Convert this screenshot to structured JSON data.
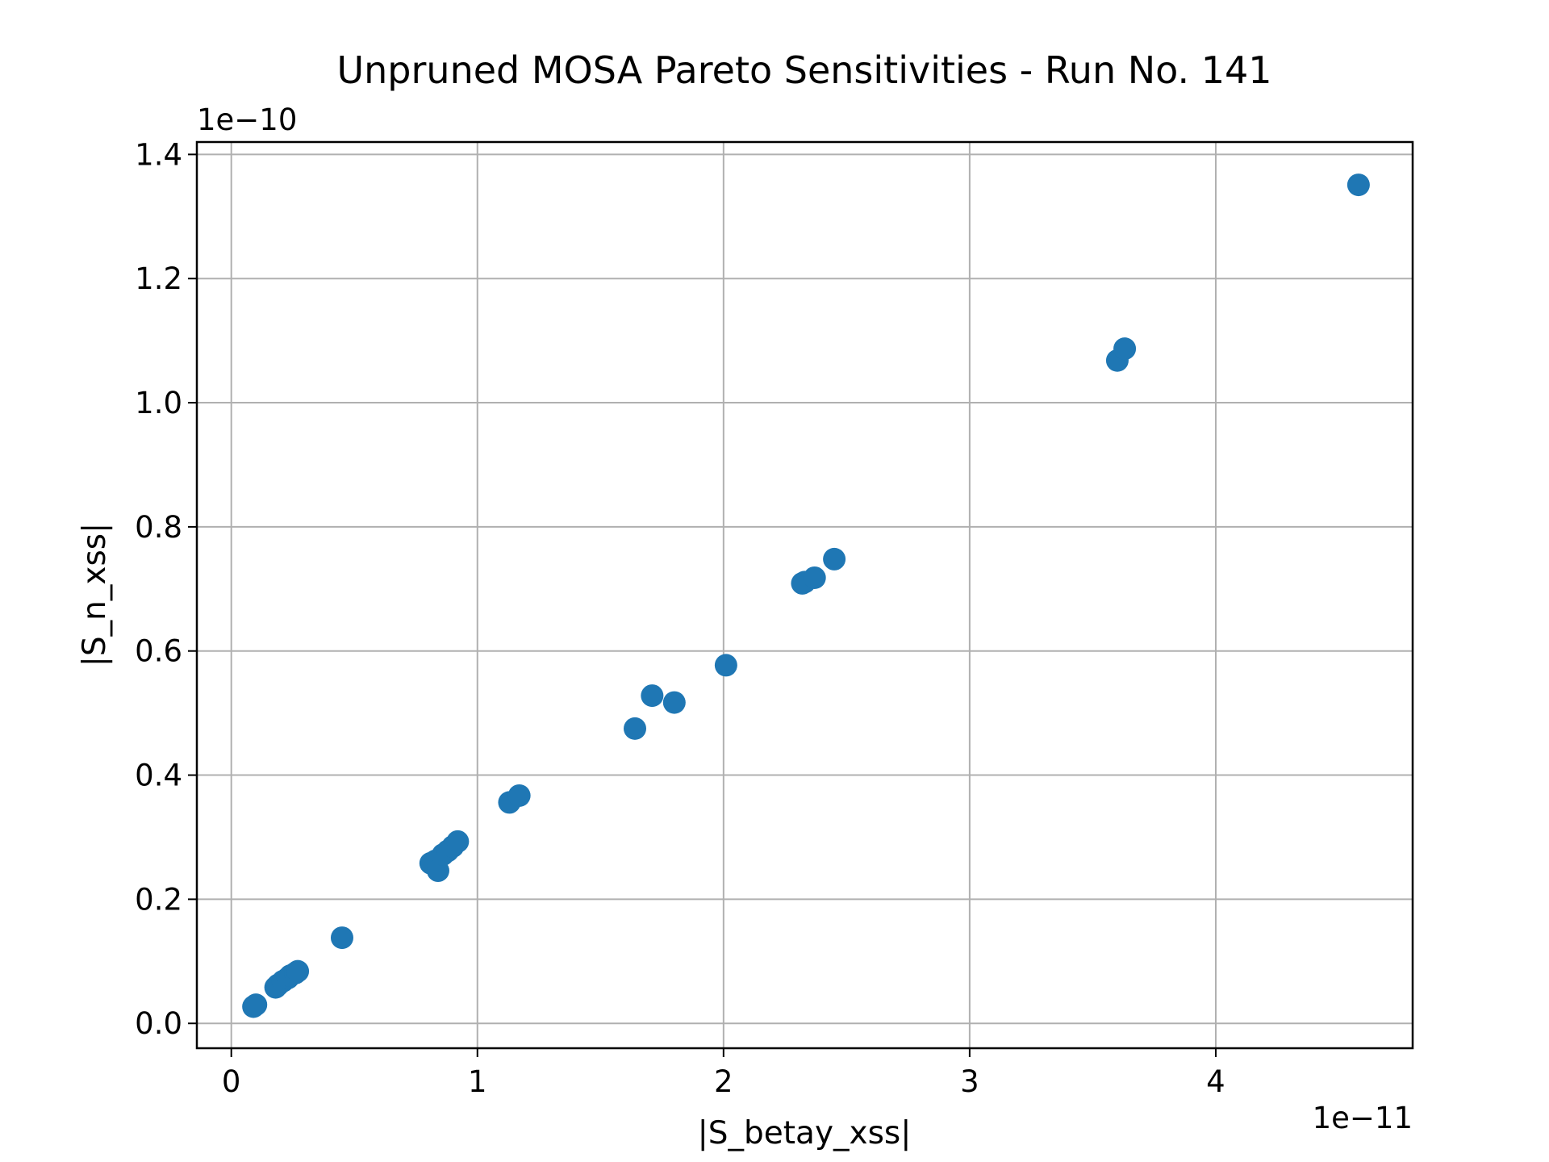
{
  "chart_data": {
    "type": "scatter",
    "title": "Unpruned MOSA Pareto Sensitivities - Run No. 141",
    "xlabel": "|S_betay_xss|",
    "ylabel": "|S_n_xss|",
    "x_offset_label": "1e−11",
    "y_offset_label": "1e−10",
    "xlim": [
      -0.14,
      4.8
    ],
    "ylim": [
      -0.04,
      1.42
    ],
    "x_ticks": [
      0,
      1,
      2,
      3,
      4
    ],
    "x_tick_labels": [
      "0",
      "1",
      "2",
      "3",
      "4"
    ],
    "y_ticks": [
      0.0,
      0.2,
      0.4,
      0.6,
      0.8,
      1.0,
      1.2,
      1.4
    ],
    "y_tick_labels": [
      "0.0",
      "0.2",
      "0.4",
      "0.6",
      "0.8",
      "1.0",
      "1.2",
      "1.4"
    ],
    "grid": true,
    "marker_color": "#1f77b4",
    "series": [
      {
        "x": [
          0.09,
          0.1,
          0.18,
          0.19,
          0.21,
          0.23,
          0.24,
          0.26,
          0.27,
          0.45,
          0.81,
          0.83,
          0.84,
          0.86,
          0.88,
          0.9,
          0.92,
          1.13,
          1.17,
          1.64,
          1.71,
          1.8,
          2.01,
          2.32,
          2.33,
          2.37,
          2.45,
          3.6,
          3.63,
          4.58
        ],
        "y": [
          0.027,
          0.03,
          0.058,
          0.062,
          0.068,
          0.073,
          0.077,
          0.081,
          0.084,
          0.138,
          0.258,
          0.262,
          0.246,
          0.272,
          0.278,
          0.285,
          0.293,
          0.356,
          0.367,
          0.475,
          0.528,
          0.517,
          0.577,
          0.709,
          0.711,
          0.718,
          0.748,
          1.068,
          1.087,
          1.351
        ]
      }
    ]
  }
}
